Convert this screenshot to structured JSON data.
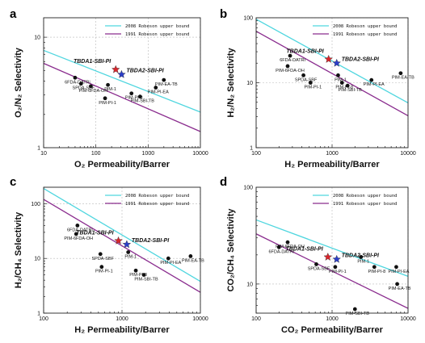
{
  "chart_data": [
    {
      "type": "scatter",
      "panel": "a",
      "xlabel": "O₂ Permeability/Barrer",
      "ylabel": "O₂/N₂ Selectivity",
      "xlim": [
        10,
        10000
      ],
      "ylim": [
        1,
        15
      ],
      "xscale": "log",
      "yscale": "log",
      "xticks": [
        10,
        100,
        1000,
        10000
      ],
      "xtick_labels": [
        "10",
        "100",
        "1000",
        "10000"
      ],
      "yticks": [
        1,
        10
      ],
      "ytick_labels": [
        "1",
        "10"
      ],
      "legend": [
        "2008 Robeson upper bound",
        "1991 Robeson upper bound"
      ],
      "legend_position": "top-right",
      "upper_bounds": [
        {
          "name": "2008 Robeson upper bound",
          "color": "#4fd6df",
          "x": [
            10,
            10000
          ],
          "y": [
            7.6,
            2.1
          ]
        },
        {
          "name": "1991 Robeson upper bound",
          "color": "#8a2c8e",
          "x": [
            10,
            10000
          ],
          "y": [
            5.8,
            1.4
          ]
        }
      ],
      "points": [
        {
          "label": "6FDA-DATRi",
          "x": 40,
          "y": 4.3
        },
        {
          "label": "SPDA-SBF",
          "x": 52,
          "y": 3.8
        },
        {
          "label": "PIM-6FDA-OH",
          "x": 80,
          "y": 3.6
        },
        {
          "label": "PIM-1",
          "x": 170,
          "y": 3.7
        },
        {
          "label": "PIM-PI-1",
          "x": 150,
          "y": 2.8
        },
        {
          "label": "PIM-PI-8",
          "x": 480,
          "y": 3.1
        },
        {
          "label": "PIM-SBI-TB",
          "x": 700,
          "y": 2.9
        },
        {
          "label": "PIM-EA-TB",
          "x": 2000,
          "y": 4.1
        },
        {
          "label": "PIM-PI-EA",
          "x": 1400,
          "y": 3.5
        }
      ],
      "stars": [
        {
          "label": "TBDA1-SBI-PI",
          "x": 240,
          "y": 5.1,
          "color": "#d9252b"
        },
        {
          "label": "TBDA2-SBI-PI",
          "x": 310,
          "y": 4.6,
          "color": "#2b3ec9"
        }
      ]
    },
    {
      "type": "scatter",
      "panel": "b",
      "xlabel": "H₂ Permeability/Barrer",
      "ylabel": "H₂/N₂ Selectivity",
      "xlim": [
        100,
        10000
      ],
      "ylim": [
        1,
        100
      ],
      "xscale": "log",
      "yscale": "log",
      "xticks": [
        100,
        1000,
        10000
      ],
      "xtick_labels": [
        "100",
        "1000",
        "10000"
      ],
      "yticks": [
        1,
        10,
        100
      ],
      "ytick_labels": [
        "1",
        "10",
        "100"
      ],
      "legend": [
        "2008 Robeson upper bound",
        "1991 Robeson upper bound"
      ],
      "legend_position": "top-right",
      "upper_bounds": [
        {
          "name": "2008 Robeson upper bound",
          "color": "#4fd6df",
          "x": [
            100,
            10000
          ],
          "y": [
            95,
            4.9
          ]
        },
        {
          "name": "1991 Robeson upper bound",
          "color": "#8a2c8e",
          "x": [
            100,
            10000
          ],
          "y": [
            62,
            3.1
          ]
        }
      ],
      "points": [
        {
          "label": "6FDA-DATRi",
          "x": 280,
          "y": 26
        },
        {
          "label": "PIM-6FDA-OH",
          "x": 260,
          "y": 18
        },
        {
          "label": "SPDA-SBF",
          "x": 420,
          "y": 13
        },
        {
          "label": "PIM-PI-1",
          "x": 520,
          "y": 10
        },
        {
          "label": "PIM-1",
          "x": 1200,
          "y": 13
        },
        {
          "label": "PIM-PI-8",
          "x": 1350,
          "y": 10
        },
        {
          "label": "PIM-SBI-TB",
          "x": 1600,
          "y": 9
        },
        {
          "label": "PIM-PI-EA",
          "x": 3300,
          "y": 11
        },
        {
          "label": "PIM-EA-TB",
          "x": 8000,
          "y": 14
        }
      ],
      "stars": [
        {
          "label": "TBDA1-SBI-PI",
          "x": 900,
          "y": 23,
          "color": "#d9252b"
        },
        {
          "label": "TBDA2-SBI-PI",
          "x": 1150,
          "y": 20,
          "color": "#2b3ec9"
        }
      ]
    },
    {
      "type": "scatter",
      "panel": "c",
      "xlabel": "H₂ Permeability/Barrer",
      "ylabel": "H₂/CH₄ Selectivity",
      "xlim": [
        100,
        10000
      ],
      "ylim": [
        1,
        200
      ],
      "xscale": "log",
      "yscale": "log",
      "xticks": [
        100,
        1000,
        10000
      ],
      "xtick_labels": [
        "100",
        "1000",
        "10000"
      ],
      "yticks": [
        1,
        10,
        100
      ],
      "ytick_labels": [
        "1",
        "10",
        "100"
      ],
      "legend": [
        "2008 Robeson upper bound",
        "1991 Robeson upper bound"
      ],
      "legend_position": "top-right",
      "upper_bounds": [
        {
          "name": "2008 Robeson upper bound",
          "color": "#4fd6df",
          "x": [
            100,
            10000
          ],
          "y": [
            190,
            3.8
          ]
        },
        {
          "name": "1991 Robeson upper bound",
          "color": "#8a2c8e",
          "x": [
            100,
            10000
          ],
          "y": [
            120,
            2.4
          ]
        }
      ],
      "points": [
        {
          "label": "6FDA-DATRi",
          "x": 270,
          "y": 40
        },
        {
          "label": "PIM-6FDA-OH",
          "x": 260,
          "y": 28
        },
        {
          "label": "SPDA-SBF",
          "x": 530,
          "y": 12
        },
        {
          "label": "PIM-PI-1",
          "x": 550,
          "y": 7
        },
        {
          "label": "PIM-1",
          "x": 1200,
          "y": 13
        },
        {
          "label": "PIM-PI-8",
          "x": 1500,
          "y": 6
        },
        {
          "label": "PIM-SBI-TB",
          "x": 1900,
          "y": 5
        },
        {
          "label": "PIM-PI-EA",
          "x": 3900,
          "y": 10
        },
        {
          "label": "PIM-EA-TB",
          "x": 7500,
          "y": 11
        }
      ],
      "stars": [
        {
          "label": "TBDA1-SBI-PI",
          "x": 900,
          "y": 21,
          "color": "#d9252b"
        },
        {
          "label": "TBDA2-SBI-PI",
          "x": 1150,
          "y": 18,
          "color": "#2b3ec9"
        }
      ]
    },
    {
      "type": "scatter",
      "panel": "d",
      "xlabel": "CO₂ Permeability/Barrer",
      "ylabel": "CO₂/CH₄ Selectivity",
      "xlim": [
        100,
        10000
      ],
      "ylim": [
        5,
        100
      ],
      "xscale": "log",
      "yscale": "log",
      "xticks": [
        100,
        1000,
        10000
      ],
      "xtick_labels": [
        "100",
        "1000",
        "10000"
      ],
      "yticks": [
        10,
        100
      ],
      "ytick_labels": [
        "10",
        "100"
      ],
      "legend": [
        "2008 Robeson upper bound",
        "1991 Robeson upper bound"
      ],
      "legend_position": "top-right",
      "upper_bounds": [
        {
          "name": "2008 Robeson upper bound",
          "color": "#4fd6df",
          "x": [
            100,
            10000
          ],
          "y": [
            46,
            12
          ]
        },
        {
          "name": "1991 Robeson upper bound",
          "color": "#8a2c8e",
          "x": [
            100,
            10000
          ],
          "y": [
            33,
            5.6
          ]
        }
      ],
      "points": [
        {
          "label": "PIM-6FDA-OH",
          "x": 260,
          "y": 27
        },
        {
          "label": "6FDA-DATRi",
          "x": 200,
          "y": 24
        },
        {
          "label": "SPDA-SBF",
          "x": 620,
          "y": 16
        },
        {
          "label": "PIM-PI-1",
          "x": 1100,
          "y": 15
        },
        {
          "label": "PIM-1",
          "x": 2400,
          "y": 19
        },
        {
          "label": "PIM-PI-8",
          "x": 3600,
          "y": 15
        },
        {
          "label": "PIM-PI-EA",
          "x": 7000,
          "y": 15
        },
        {
          "label": "PIM-EA-TB",
          "x": 7200,
          "y": 10
        },
        {
          "label": "PIM-SBI-TB",
          "x": 2000,
          "y": 5.5
        }
      ],
      "stars": [
        {
          "label": "TBDA1-SBI-PI",
          "x": 880,
          "y": 19,
          "color": "#d9252b"
        },
        {
          "label": "TBDA2-SBI-PI",
          "x": 1150,
          "y": 18,
          "color": "#2b3ec9"
        }
      ]
    }
  ]
}
